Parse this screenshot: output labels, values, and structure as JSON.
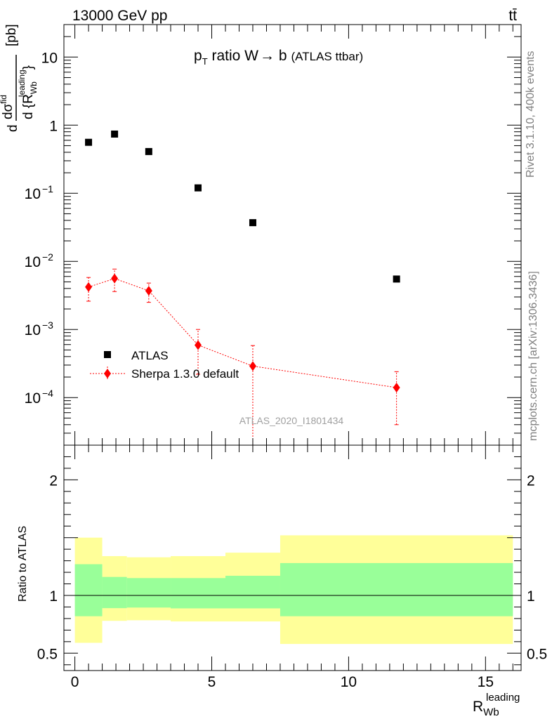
{
  "header": {
    "energy": "13000 GeV pp",
    "process": "tt̄"
  },
  "side_labels": {
    "rivet": "Rivet 3.1.10,  400k events",
    "mcplots": "mcplots.cern.ch [arXiv:1306.3436]"
  },
  "chart_data": [
    {
      "type": "scatter",
      "title": "pT ratio W → b (ATLAS ttbar)",
      "title_parts": {
        "p": "p",
        "sub": "T",
        "rest": " ratio W",
        "arrow": "→",
        "b": " b",
        "suffix": "(ATLAS ttbar)"
      },
      "analysis_id": "ATLAS_2020_I1801434",
      "xlabel": "R_Wb^leading",
      "xlabel_parts": {
        "main": "R",
        "sub": "Wb",
        "sup": "leading"
      },
      "ylabel": "d σ^fid / d {R_Wb^leading} [pb]",
      "ylabel_parts": {
        "d": "d",
        "sigma": "dσ",
        "sup": "fid",
        "denom": "d {R",
        "sub": "Wb",
        "sup2": "leading",
        "close": "}",
        "unit": "[pb]"
      },
      "yscale": "log",
      "xlim": [
        -0.4,
        16.3
      ],
      "ylim": [
        2e-05,
        30
      ],
      "y_ticks": [
        {
          "value": 0.0001,
          "base": "10",
          "exp": "−4"
        },
        {
          "value": 0.001,
          "base": "10",
          "exp": "−3"
        },
        {
          "value": 0.01,
          "base": "10",
          "exp": "−2"
        },
        {
          "value": 0.1,
          "base": "10",
          "exp": "−1"
        },
        {
          "value": 1,
          "label": "1"
        },
        {
          "value": 10,
          "label": "10"
        }
      ],
      "legend_position": "bottom-left",
      "series": [
        {
          "name": "ATLAS",
          "marker": "square",
          "color": "#000000",
          "x": [
            0.5,
            1.45,
            2.7,
            4.5,
            6.5,
            11.75
          ],
          "y": [
            0.56,
            0.74,
            0.41,
            0.12,
            0.037,
            0.0055
          ]
        },
        {
          "name": "Sherpa 1.3.0 default",
          "marker": "diamond",
          "color": "#ff0000",
          "line": "dotted",
          "x": [
            0.5,
            1.45,
            2.7,
            4.5,
            6.5,
            11.75
          ],
          "y": [
            0.0042,
            0.0056,
            0.0037,
            0.00059,
            0.00029,
            0.00014
          ],
          "y_low": [
            0.0026,
            0.0036,
            0.0025,
            0.00022,
            1e-06,
            4e-05
          ],
          "y_high": [
            0.0058,
            0.0077,
            0.0048,
            0.001,
            0.00058,
            0.00024
          ]
        }
      ]
    },
    {
      "type": "area",
      "ylabel": "Ratio to ATLAS",
      "xlim": [
        -0.4,
        16.3
      ],
      "ylim": [
        0.35,
        2.3
      ],
      "y_ticks": [
        {
          "value": 0.5,
          "label": "0.5"
        },
        {
          "value": 1,
          "label": "1"
        },
        {
          "value": 2,
          "label": "2"
        }
      ],
      "x_ticks": [
        {
          "value": 0,
          "label": "0"
        },
        {
          "value": 5,
          "label": "5"
        },
        {
          "value": 10,
          "label": "10"
        },
        {
          "value": 15,
          "label": "15"
        }
      ],
      "reference_line": 1,
      "band_colors": {
        "outer": "#ffff99",
        "inner": "#99ff99"
      },
      "bins": [
        {
          "x": [
            0,
            1
          ],
          "outer": [
            0.59,
            1.5
          ],
          "inner": [
            0.82,
            1.27
          ]
        },
        {
          "x": [
            1,
            1.9
          ],
          "outer": [
            0.78,
            1.34
          ],
          "inner": [
            0.89,
            1.16
          ]
        },
        {
          "x": [
            1.9,
            3.5
          ],
          "outer": [
            0.785,
            1.33
          ],
          "inner": [
            0.895,
            1.15
          ]
        },
        {
          "x": [
            3.5,
            5.5
          ],
          "outer": [
            0.775,
            1.34
          ],
          "inner": [
            0.888,
            1.15
          ]
        },
        {
          "x": [
            5.5,
            7.5
          ],
          "outer": [
            0.775,
            1.37
          ],
          "inner": [
            0.888,
            1.17
          ]
        },
        {
          "x": [
            7.5,
            16
          ],
          "outer": [
            0.58,
            1.52
          ],
          "inner": [
            0.82,
            1.28
          ]
        }
      ]
    }
  ]
}
